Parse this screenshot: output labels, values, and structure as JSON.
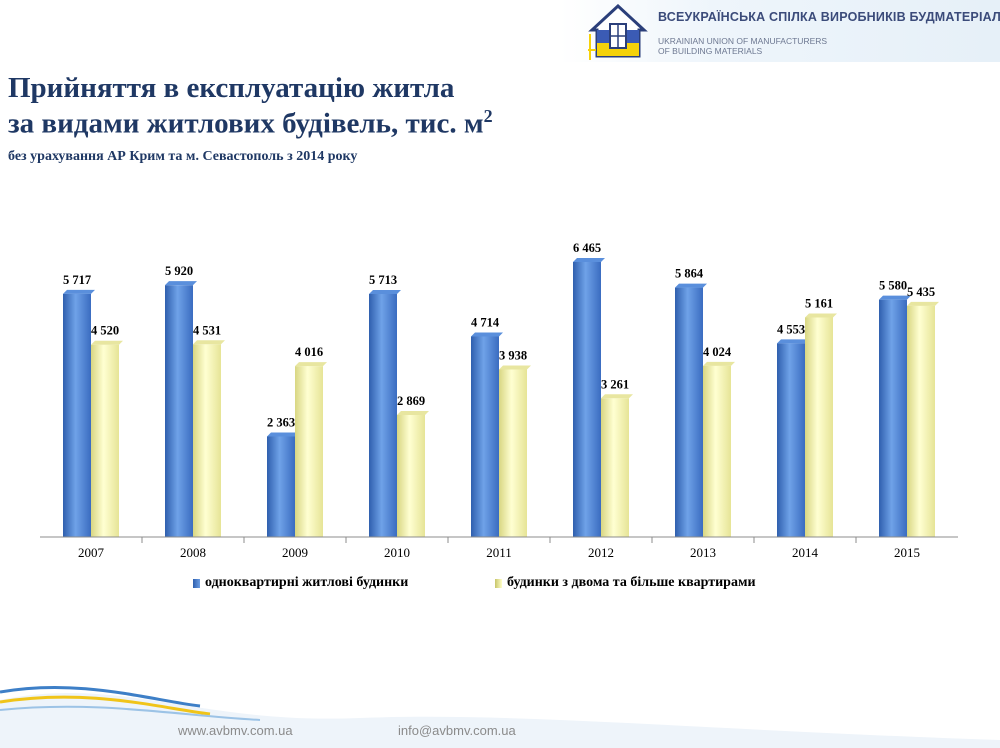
{
  "header": {
    "org_name_ua": "ВСЕУКРАЇНСЬКА СПІЛКА ВИРОБНИКІВ БУДМАТЕРІАЛІВ",
    "org_name_en_line1": "UKRAINIAN UNION OF MANUFACTURERS",
    "org_name_en_line2": "OF BUILDING MATERIALS"
  },
  "slide": {
    "title_line1": "Прийняття в експлуатацію житла",
    "title_line2": "за видами житлових будівель, тис. м",
    "title_sup": "2",
    "subtitle": "без урахування АР Крим та м. Севастополь з 2014 року"
  },
  "chart_data": {
    "type": "bar",
    "categories": [
      "2007",
      "2008",
      "2009",
      "2010",
      "2011",
      "2012",
      "2013",
      "2014",
      "2015"
    ],
    "series": [
      {
        "name": "одноквартирні житлові будинки",
        "values": [
          5717,
          5920,
          2363,
          5713,
          4714,
          6465,
          5864,
          4553,
          5580
        ],
        "labels": [
          "5 717",
          "5 920",
          "2 363",
          "5 713",
          "4 714",
          "6 465",
          "5 864",
          "4 553",
          "5 580"
        ]
      },
      {
        "name": "будинки з двома та більше квартирами",
        "values": [
          4520,
          4531,
          4016,
          2869,
          3938,
          3261,
          4024,
          5161,
          5435
        ],
        "labels": [
          "4 520",
          "4 531",
          "4 016",
          "2 869",
          "3 938",
          "3 261",
          "4 024",
          "5 161",
          "5 435"
        ]
      }
    ],
    "ylim": [
      0,
      6600
    ],
    "grid": false,
    "legend": "bottom",
    "colors": [
      "#4a7fd0",
      "#f4f2a6"
    ]
  },
  "footer": {
    "website": "www.avbmv.com.ua",
    "email": "info@avbmv.com.ua"
  }
}
